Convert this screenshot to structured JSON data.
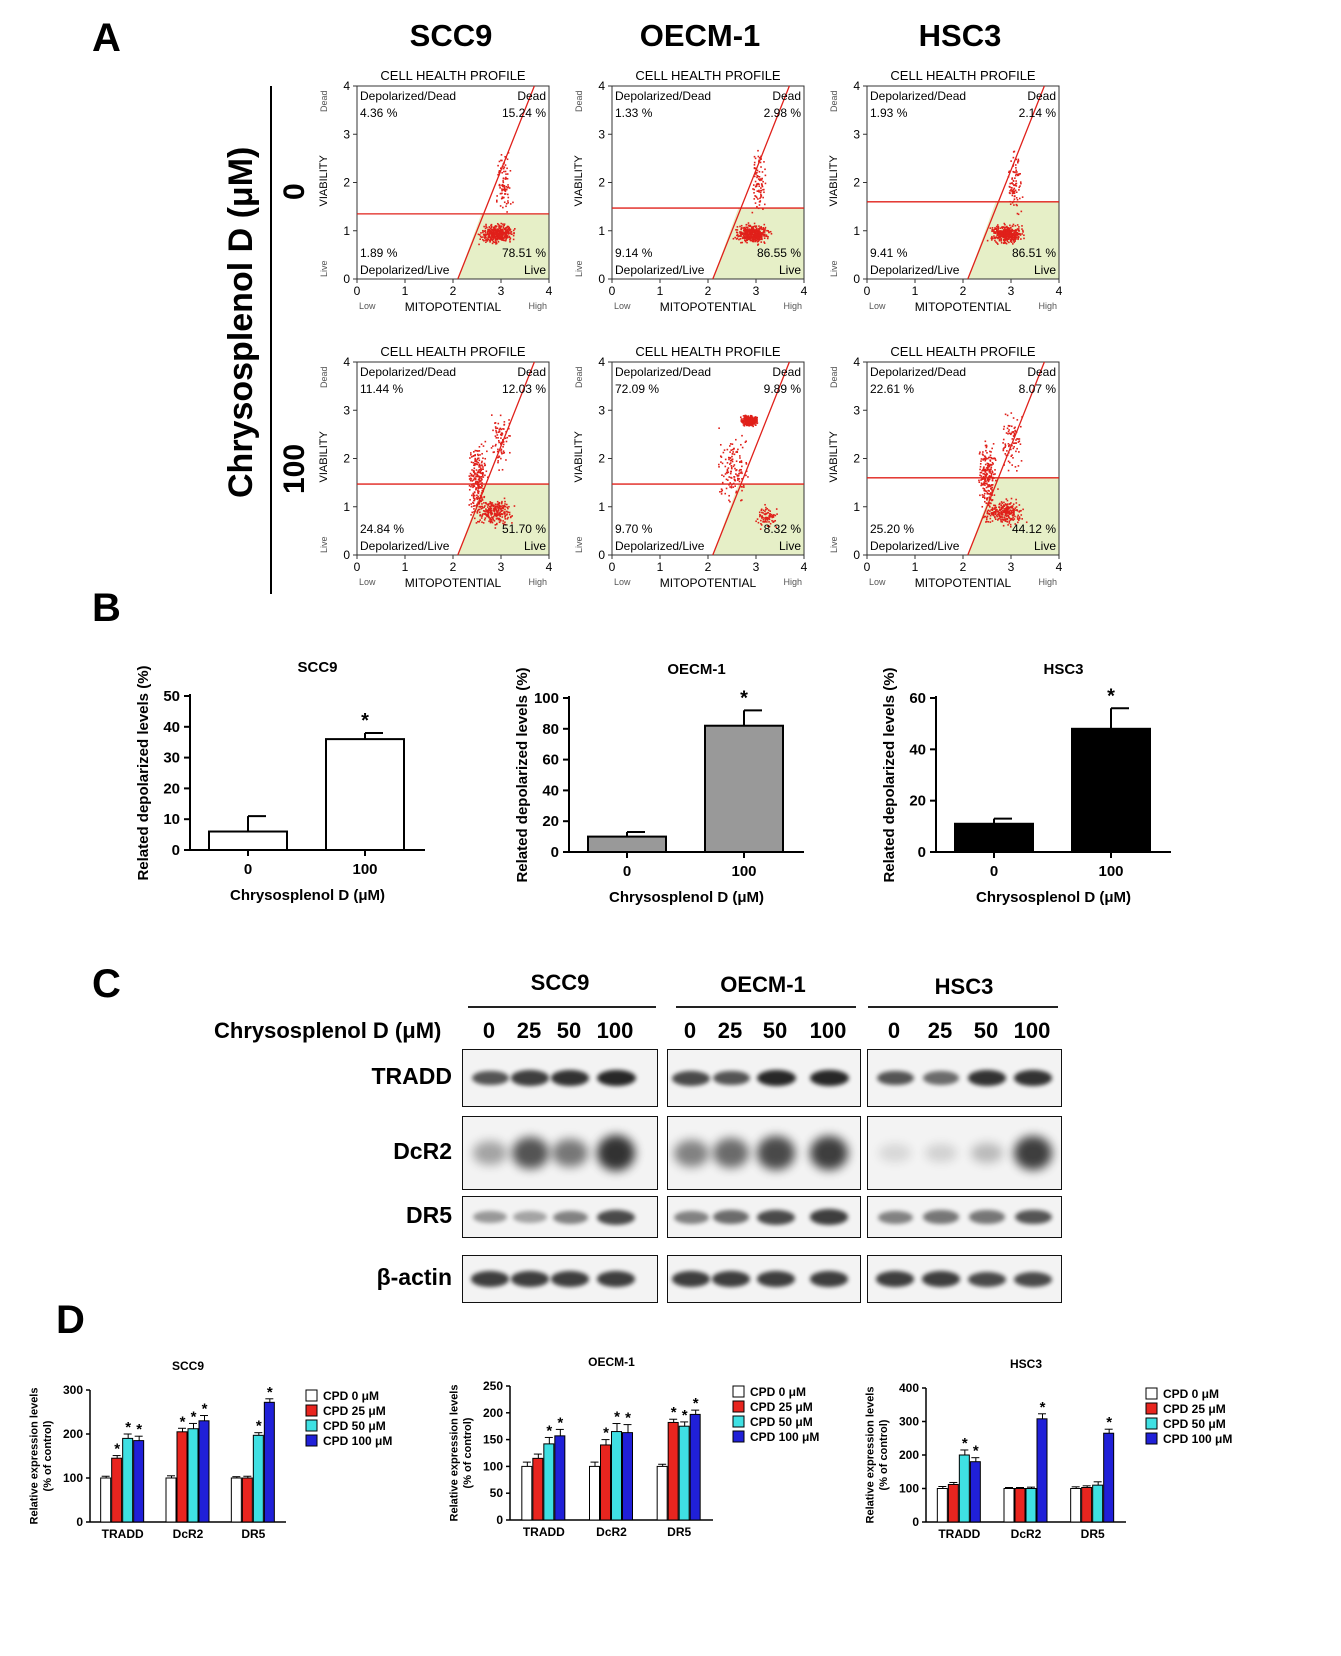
{
  "panels": {
    "a": "A",
    "b": "B",
    "c": "C",
    "d": "D"
  },
  "cell_lines": [
    "SCC9",
    "OECM-1",
    "HSC3"
  ],
  "panel_a": {
    "y_axis_label": "Chrysosplenol D (μM)",
    "doses": [
      "0",
      "100"
    ],
    "plot_title": "CELL HEALTH PROFILE",
    "x_label": "MITOPOTENTIAL",
    "y_label": "VIABILITY",
    "x_low": "Low",
    "x_high": "High",
    "y_live": "Live",
    "y_dead": "Dead",
    "q_depol_dead": "Depolarized/Dead",
    "q_dead": "Dead",
    "q_depol_live": "Depolarized/Live",
    "q_live": "Live",
    "ticks": [
      "0",
      "1",
      "2",
      "3",
      "4"
    ],
    "plots": [
      {
        "cell": "SCC9",
        "dose": "0",
        "depol_dead": "4.36 %",
        "dead": "15.24 %",
        "depol_live": "1.89 %",
        "live": "78.51 %",
        "cluster": "live"
      },
      {
        "cell": "OECM-1",
        "dose": "0",
        "depol_dead": "1.33 %",
        "dead": "2.98 %",
        "depol_live": "9.14 %",
        "live": "86.55 %",
        "cluster": "live"
      },
      {
        "cell": "HSC3",
        "dose": "0",
        "depol_dead": "1.93 %",
        "dead": "2.14 %",
        "depol_live": "9.41 %",
        "live": "86.51 %",
        "cluster": "live"
      },
      {
        "cell": "SCC9",
        "dose": "100",
        "depol_dead": "11.44 %",
        "dead": "12.03 %",
        "depol_live": "24.84 %",
        "live": "51.70 %",
        "cluster": "spread"
      },
      {
        "cell": "OECM-1",
        "dose": "100",
        "depol_dead": "72.09 %",
        "dead": "9.89 %",
        "depol_live": "9.70 %",
        "live": "8.32 %",
        "cluster": "dead"
      },
      {
        "cell": "HSC3",
        "dose": "100",
        "depol_dead": "22.61 %",
        "dead": "8.07 %",
        "depol_live": "25.20 %",
        "live": "44.12 %",
        "cluster": "spread"
      }
    ]
  },
  "chart_data": [
    {
      "type": "bar",
      "title": "SCC9",
      "xlabel": "Chrysosplenol D (μM)",
      "ylabel": "Related depolarized levels (%)",
      "categories": [
        "0",
        "100"
      ],
      "values": [
        6,
        36
      ],
      "errors": [
        5,
        2
      ],
      "significance": [
        "",
        "*"
      ],
      "ylim": [
        0,
        50
      ],
      "yticks": [
        0,
        10,
        20,
        30,
        40,
        50
      ],
      "color": "#ffffff"
    },
    {
      "type": "bar",
      "title": "OECM-1",
      "xlabel": "Chrysosplenol D (μM)",
      "ylabel": "Related depolarized levels (%)",
      "categories": [
        "0",
        "100"
      ],
      "values": [
        10,
        82
      ],
      "errors": [
        3,
        10
      ],
      "significance": [
        "",
        "*"
      ],
      "ylim": [
        0,
        100
      ],
      "yticks": [
        0,
        20,
        40,
        60,
        80,
        100
      ],
      "color": "#999999"
    },
    {
      "type": "bar",
      "title": "HSC3",
      "xlabel": "Chrysosplenol D (μM)",
      "ylabel": "Related depolarized levels (%)",
      "categories": [
        "0",
        "100"
      ],
      "values": [
        11,
        48
      ],
      "errors": [
        2,
        8
      ],
      "significance": [
        "",
        "*"
      ],
      "ylim": [
        0,
        60
      ],
      "yticks": [
        0,
        20,
        40,
        60
      ],
      "color": "#000000"
    },
    {
      "type": "bar",
      "title": "SCC9",
      "ylabel": "Relative expression levels (% of control)",
      "categories": [
        "TRADD",
        "DcR2",
        "DR5"
      ],
      "ylim": [
        0,
        300
      ],
      "yticks": [
        0,
        100,
        200,
        300
      ],
      "series": [
        {
          "name": "CPD 0 μM",
          "color": "#ffffff",
          "values": [
            100,
            100,
            100
          ],
          "errors": [
            4,
            5,
            3
          ],
          "sig": [
            "",
            "",
            ""
          ]
        },
        {
          "name": "CPD 25 μM",
          "color": "#e8251f",
          "values": [
            145,
            205,
            100
          ],
          "errors": [
            6,
            8,
            4
          ],
          "sig": [
            "*",
            "*",
            ""
          ]
        },
        {
          "name": "CPD 50 μM",
          "color": "#3fe0e3",
          "values": [
            190,
            212,
            197
          ],
          "errors": [
            10,
            12,
            6
          ],
          "sig": [
            "*",
            "*",
            "*"
          ]
        },
        {
          "name": "CPD 100 μM",
          "color": "#2020d8",
          "values": [
            185,
            230,
            272
          ],
          "errors": [
            10,
            12,
            8
          ],
          "sig": [
            "*",
            "*",
            "*"
          ]
        }
      ]
    },
    {
      "type": "bar",
      "title": "OECM-1",
      "ylabel": "Relative expression levels (% of control)",
      "categories": [
        "TRADD",
        "DcR2",
        "DR5"
      ],
      "ylim": [
        0,
        250
      ],
      "yticks": [
        0,
        50,
        100,
        150,
        200,
        250
      ],
      "series": [
        {
          "name": "CPD 0 μM",
          "color": "#ffffff",
          "values": [
            100,
            100,
            100
          ],
          "errors": [
            8,
            8,
            4
          ],
          "sig": [
            "",
            "",
            ""
          ]
        },
        {
          "name": "CPD 25 μM",
          "color": "#e8251f",
          "values": [
            115,
            140,
            182
          ],
          "errors": [
            8,
            10,
            6
          ],
          "sig": [
            "",
            "*",
            "*"
          ]
        },
        {
          "name": "CPD 50 μM",
          "color": "#3fe0e3",
          "values": [
            142,
            165,
            175
          ],
          "errors": [
            12,
            15,
            8
          ],
          "sig": [
            "*",
            "*",
            "*"
          ]
        },
        {
          "name": "CPD 100 μM",
          "color": "#2020d8",
          "values": [
            157,
            163,
            197
          ],
          "errors": [
            12,
            15,
            8
          ],
          "sig": [
            "*",
            "*",
            "*"
          ]
        }
      ]
    },
    {
      "type": "bar",
      "title": "HSC3",
      "ylabel": "Relative expression levels (% of control)",
      "categories": [
        "TRADD",
        "DcR2",
        "DR5"
      ],
      "ylim": [
        0,
        400
      ],
      "yticks": [
        0,
        100,
        200,
        300,
        400
      ],
      "series": [
        {
          "name": "CPD 0 μM",
          "color": "#ffffff",
          "values": [
            100,
            100,
            100
          ],
          "errors": [
            6,
            3,
            5
          ],
          "sig": [
            "",
            "",
            ""
          ]
        },
        {
          "name": "CPD 25 μM",
          "color": "#e8251f",
          "values": [
            112,
            100,
            103
          ],
          "errors": [
            6,
            3,
            5
          ],
          "sig": [
            "",
            "",
            ""
          ]
        },
        {
          "name": "CPD 50 μM",
          "color": "#3fe0e3",
          "values": [
            200,
            100,
            110
          ],
          "errors": [
            15,
            4,
            10
          ],
          "sig": [
            "*",
            "",
            ""
          ]
        },
        {
          "name": "CPD 100 μM",
          "color": "#2020d8",
          "values": [
            180,
            308,
            265
          ],
          "errors": [
            12,
            15,
            12
          ],
          "sig": [
            "*",
            "*",
            "*"
          ]
        }
      ]
    }
  ],
  "western": {
    "dose_label": "Chrysosplenol D (μM)",
    "lanes": [
      "0",
      "25",
      "50",
      "100"
    ],
    "rows": [
      "TRADD",
      "DcR2",
      "DR5",
      "β-actin"
    ]
  },
  "colors": {
    "flow_red": "#e0201a",
    "live_fill": "#e6efc7"
  }
}
